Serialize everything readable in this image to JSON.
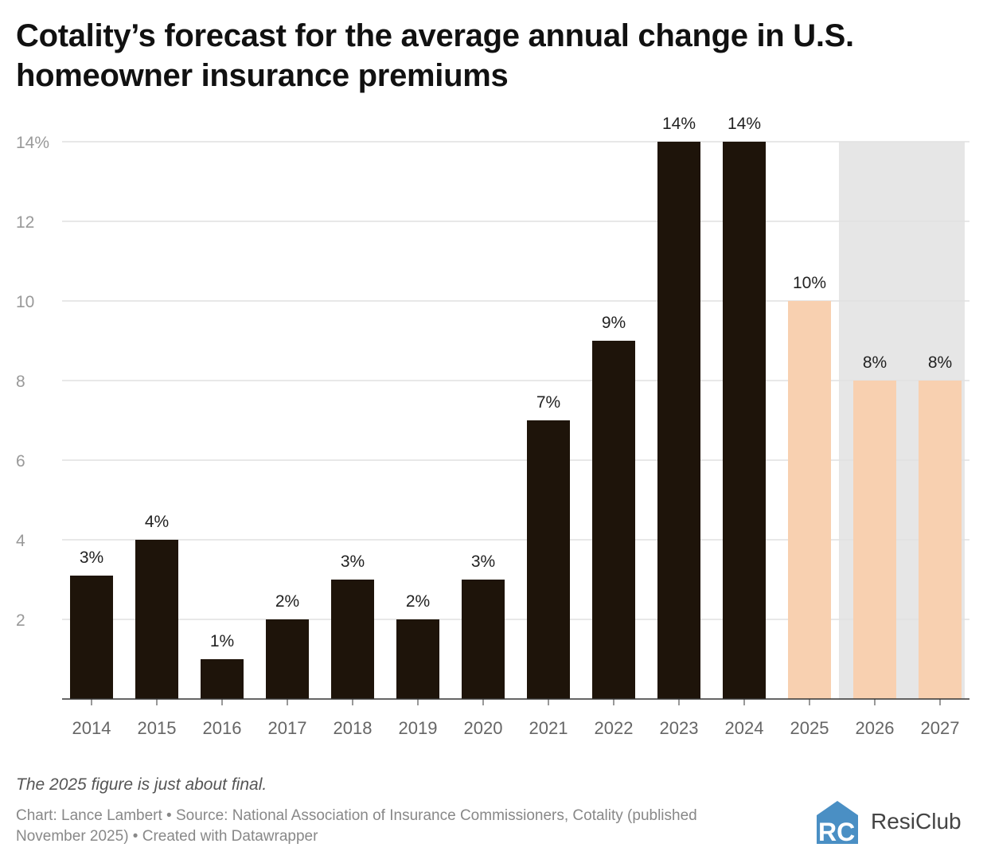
{
  "title": "Cotality’s forecast for the average annual change in U.S. homeowner insurance premiums",
  "note": "The 2025 figure is just about final.",
  "source": "Chart: Lance Lambert • Source: National Association of Insurance Commissioners, Cotality (published November 2025) • Created with Datawrapper",
  "logo": {
    "text": "ResiClub",
    "mark": "RC"
  },
  "chart_data": {
    "type": "bar",
    "categories": [
      "2014",
      "2015",
      "2016",
      "2017",
      "2018",
      "2019",
      "2020",
      "2021",
      "2022",
      "2023",
      "2024",
      "2025",
      "2026",
      "2027"
    ],
    "values": [
      3.1,
      4,
      1,
      2,
      3,
      2,
      3,
      7,
      9,
      14,
      14,
      10,
      8,
      8
    ],
    "data_labels": [
      "3%",
      "4%",
      "1%",
      "2%",
      "3%",
      "2%",
      "3%",
      "7%",
      "9%",
      "14%",
      "14%",
      "10%",
      "8%",
      "8%"
    ],
    "ylim": [
      0,
      14
    ],
    "yticks": [
      2,
      4,
      6,
      8,
      10,
      12,
      14
    ],
    "ytick_labels": [
      "2",
      "4",
      "6",
      "8",
      "10",
      "12",
      "14%"
    ],
    "grid": true,
    "shaded_range": [
      "2026",
      "2027"
    ],
    "colors": {
      "actual": "#1e140a",
      "forecast": "#f8d0b0",
      "shade": "#e6e6e6",
      "grid": "#e0e0e0",
      "logo": "#4a8fc4"
    },
    "forecast_from": "2025"
  }
}
